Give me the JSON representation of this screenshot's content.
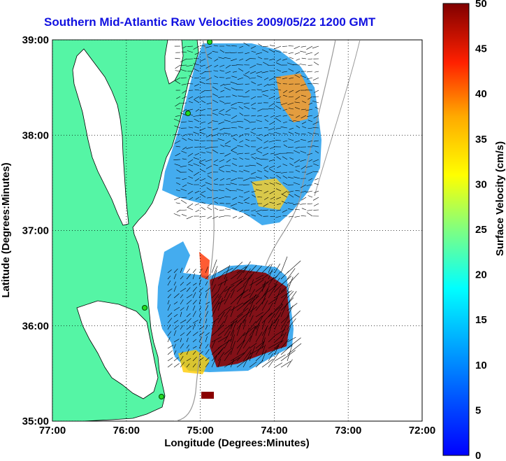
{
  "title": "Southern Mid-Atlantic Raw Velocities 2009/05/22 1200 GMT",
  "axes": {
    "xlabel": "Longitude (Degrees:Minutes)",
    "ylabel": "Latitude (Degrees:Minutes)",
    "xticks": [
      "77:00",
      "76:00",
      "75:00",
      "74:00",
      "73:00",
      "72:00"
    ],
    "yticks": [
      "39:00",
      "38:00",
      "37:00",
      "36:00",
      "35:00"
    ],
    "xlim": [
      -77,
      -72
    ],
    "ylim": [
      35,
      39
    ],
    "grid": "dotted"
  },
  "colorbar": {
    "label": "Surface Velocity (cm/s)",
    "ticks": [
      "50",
      "45",
      "40",
      "35",
      "30",
      "25",
      "20",
      "15",
      "10",
      "5",
      "0"
    ],
    "range": [
      0,
      50
    ],
    "colormap": "jet"
  },
  "colors": {
    "title": "#1010e0",
    "land": "#55f5a5",
    "station": "#22dd22"
  }
}
